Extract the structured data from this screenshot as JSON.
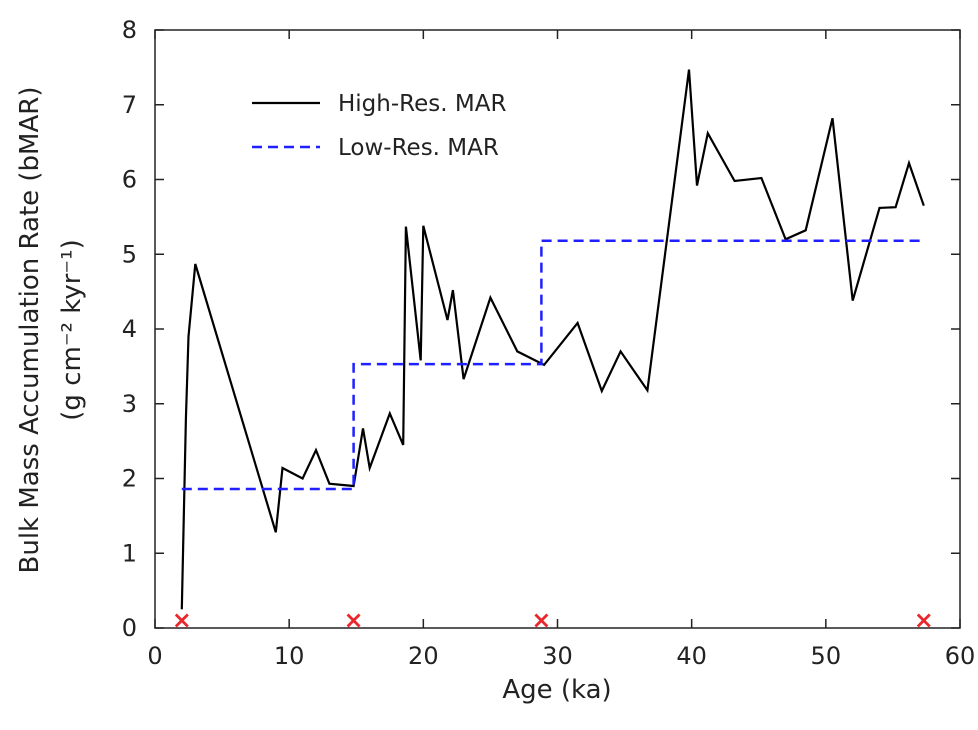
{
  "chart_data": {
    "type": "line",
    "xlabel": "Age (ka)",
    "ylabel": "Bulk Mass Accumulation Rate (bMAR)",
    "ylabel_units": "(g cm⁻² kyr⁻¹)",
    "xlim": [
      0,
      60
    ],
    "ylim": [
      0,
      8
    ],
    "x_ticks": [
      0,
      10,
      20,
      30,
      40,
      50,
      60
    ],
    "y_ticks": [
      0,
      1,
      2,
      3,
      4,
      5,
      6,
      7,
      8
    ],
    "grid": false,
    "legend_position": "top-left",
    "series": [
      {
        "name": "High-Res. MAR",
        "color": "#000000",
        "style": "solid",
        "x": [
          2.0,
          2.3,
          2.5,
          3.0,
          9.0,
          9.5,
          11.0,
          12.0,
          13.0,
          14.8,
          15.5,
          16.0,
          17.5,
          18.5,
          18.7,
          19.8,
          20.0,
          21.8,
          22.2,
          23.0,
          25.0,
          27.0,
          29.0,
          31.5,
          33.3,
          34.7,
          36.7,
          39.8,
          40.4,
          41.2,
          43.2,
          45.2,
          47.0,
          48.5,
          50.5,
          52.0,
          54.0,
          55.2,
          56.2,
          57.3
        ],
        "y": [
          0.25,
          2.8,
          3.9,
          4.87,
          1.28,
          2.14,
          2.0,
          2.38,
          1.93,
          1.9,
          2.67,
          2.14,
          2.87,
          2.45,
          5.37,
          3.58,
          5.38,
          4.12,
          4.52,
          3.33,
          4.42,
          3.7,
          3.52,
          4.08,
          3.17,
          3.7,
          3.18,
          7.47,
          5.92,
          6.62,
          5.98,
          6.02,
          5.2,
          5.32,
          6.82,
          4.38,
          5.62,
          5.63,
          6.22,
          5.65
        ]
      },
      {
        "name": "Low-Res. MAR",
        "color": "#1f1fff",
        "style": "dashed",
        "x": [
          2.0,
          14.8,
          14.8,
          28.8,
          28.8,
          57.3
        ],
        "y": [
          1.86,
          1.86,
          3.53,
          3.53,
          5.18,
          5.18
        ]
      }
    ],
    "markers": {
      "color": "#e8282b",
      "x": [
        2.0,
        14.8,
        28.8,
        57.3
      ],
      "y": [
        0.1,
        0.1,
        0.1,
        0.1
      ]
    }
  }
}
